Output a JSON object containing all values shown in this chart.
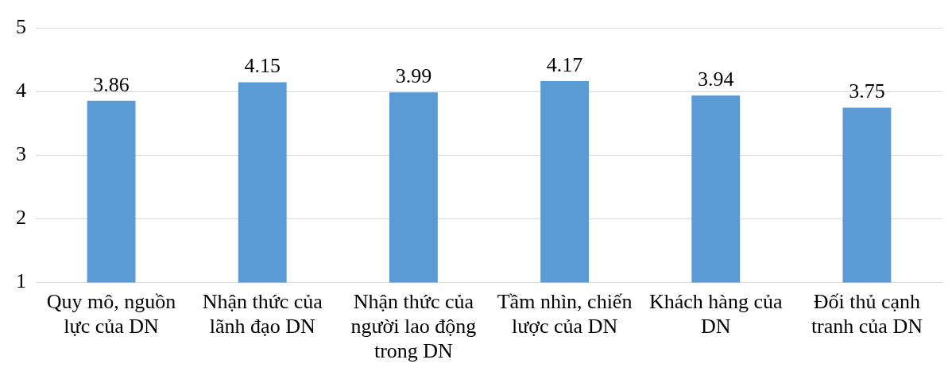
{
  "chart_data": {
    "type": "bar",
    "categories": [
      "Quy mô, nguồn lực của DN",
      "Nhận thức của lãnh đạo DN",
      "Nhận thức của người lao động trong DN",
      "Tầm nhìn, chiến lược của DN",
      "Khách hàng của DN",
      "Đối thủ cạnh tranh của DN"
    ],
    "values": [
      3.86,
      4.15,
      3.99,
      4.17,
      3.94,
      3.75
    ],
    "color": "#5b9bd5",
    "ylim": [
      1,
      5
    ],
    "yticks": [
      1,
      2,
      3,
      4,
      5
    ],
    "grid": "y",
    "data_labels": true,
    "legend": false
  }
}
